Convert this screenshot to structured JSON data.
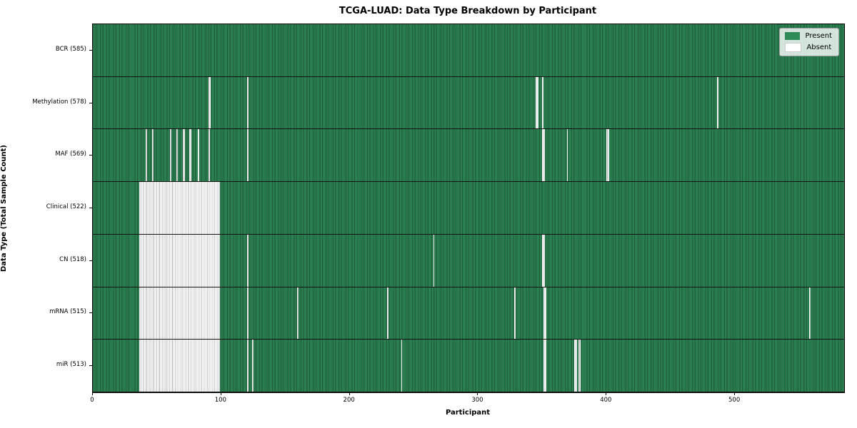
{
  "chart_data": {
    "type": "heatmap",
    "title": "TCGA-LUAD: Data Type Breakdown by Participant",
    "xlabel": "Participant",
    "ylabel": "Data Type (Total Sample Count)",
    "x_ticks": [
      0,
      100,
      200,
      300,
      400,
      500
    ],
    "x_range": [
      0,
      585
    ],
    "total_participants": 585,
    "grid": false,
    "legend_position": "upper right",
    "colors": {
      "present_fill": "#2e8b57",
      "present_edge": "#1c5434",
      "absent_fill": "#ffffff",
      "absent_edge": "#b4b4b4"
    },
    "legend": [
      {
        "label": "Present",
        "color": "#2e8b57",
        "border": "none"
      },
      {
        "label": "Absent",
        "color": "#ffffff",
        "border": "#cccccc"
      }
    ],
    "rows": [
      {
        "label": "BCR (585)",
        "name": "bcr",
        "present_count": 585,
        "absent_ranges": []
      },
      {
        "label": "Methylation (578)",
        "name": "methylation",
        "present_count": 578,
        "absent_ranges": [
          [
            90,
            91
          ],
          [
            120,
            120
          ],
          [
            345,
            346
          ],
          [
            350,
            350
          ],
          [
            486,
            486
          ]
        ]
      },
      {
        "label": "MAF (569)",
        "name": "maf",
        "present_count": 569,
        "absent_ranges": [
          [
            41,
            41
          ],
          [
            46,
            46
          ],
          [
            60,
            60
          ],
          [
            65,
            65
          ],
          [
            70,
            71
          ],
          [
            75,
            76
          ],
          [
            82,
            82
          ],
          [
            90,
            90
          ],
          [
            120,
            120
          ],
          [
            350,
            351
          ],
          [
            369,
            369
          ],
          [
            400,
            401
          ]
        ]
      },
      {
        "label": "Clinical (522)",
        "name": "clinical",
        "present_count": 522,
        "absent_ranges": [
          [
            36,
            98
          ]
        ]
      },
      {
        "label": "CN (518)",
        "name": "cn",
        "present_count": 518,
        "absent_ranges": [
          [
            36,
            98
          ],
          [
            120,
            120
          ],
          [
            265,
            265
          ],
          [
            350,
            351
          ]
        ]
      },
      {
        "label": "mRNA (515)",
        "name": "mrna",
        "present_count": 515,
        "absent_ranges": [
          [
            36,
            98
          ],
          [
            120,
            120
          ],
          [
            159,
            159
          ],
          [
            229,
            229
          ],
          [
            328,
            328
          ],
          [
            351,
            352
          ],
          [
            558,
            558
          ]
        ]
      },
      {
        "label": "miR (513)",
        "name": "mir",
        "present_count": 513,
        "absent_ranges": [
          [
            36,
            98
          ],
          [
            120,
            120
          ],
          [
            124,
            124
          ],
          [
            240,
            240
          ],
          [
            351,
            352
          ],
          [
            375,
            376
          ],
          [
            378,
            379
          ]
        ]
      }
    ]
  }
}
